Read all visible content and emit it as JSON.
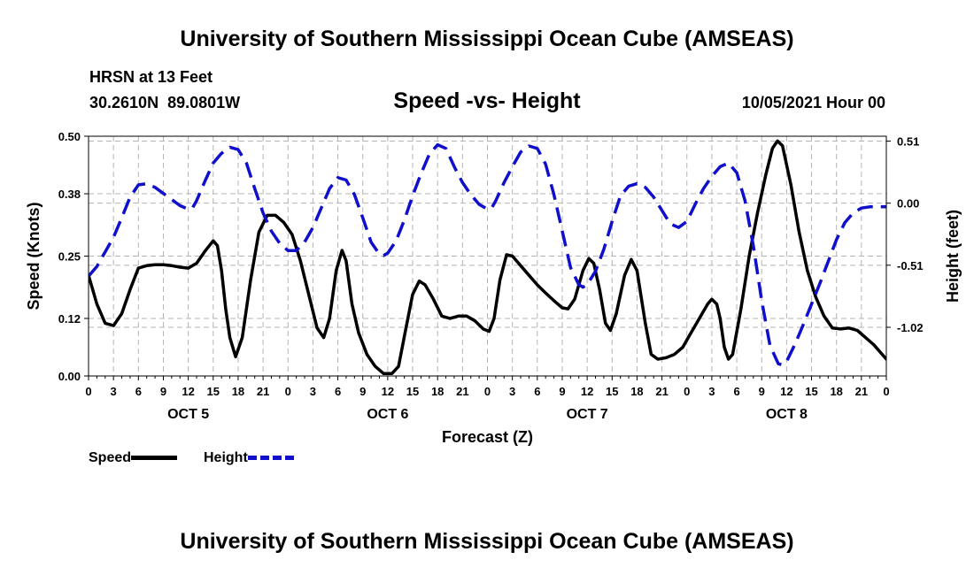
{
  "header": {
    "title": "University of Southern Mississippi Ocean Cube (AMSEAS)",
    "station": "HRSN at 13 Feet",
    "coords": "30.2610N  89.0801W",
    "subtitle": "Speed -vs- Height",
    "datestamp": "10/05/2021 Hour 00"
  },
  "footer": {
    "title": "University of Southern Mississippi Ocean Cube (AMSEAS)"
  },
  "legend": {
    "speed_label": "Speed",
    "height_label": "Height"
  },
  "colors": {
    "speed": "#000000",
    "height": "#1010cc",
    "grid": "#b4b4b4"
  },
  "chart_data": {
    "type": "line",
    "title": "Speed -vs- Height",
    "xlabel": "Forecast (Z)",
    "ylabel": "Speed (Knots)",
    "y2label": "Height (feet)",
    "xlim": [
      0,
      96
    ],
    "ylim": [
      0,
      0.5
    ],
    "y2lim": [
      -1.42,
      0.55
    ],
    "x_ticks": [
      0,
      3,
      6,
      9,
      12,
      15,
      18,
      21,
      24,
      27,
      30,
      33,
      36,
      39,
      42,
      45,
      48,
      51,
      54,
      57,
      60,
      63,
      66,
      69,
      72,
      75,
      78,
      81,
      84,
      87,
      90,
      93,
      96
    ],
    "x_tick_labels": [
      "0",
      "3",
      "6",
      "9",
      "12",
      "15",
      "18",
      "21",
      "0",
      "3",
      "6",
      "9",
      "12",
      "15",
      "18",
      "21",
      "0",
      "3",
      "6",
      "9",
      "12",
      "15",
      "18",
      "21",
      "0",
      "3",
      "6",
      "9",
      "12",
      "15",
      "18",
      "21",
      "0"
    ],
    "day_labels": [
      {
        "x": 12,
        "label": "OCT 5"
      },
      {
        "x": 36,
        "label": "OCT 6"
      },
      {
        "x": 60,
        "label": "OCT 7"
      },
      {
        "x": 84,
        "label": "OCT 8"
      }
    ],
    "y_ticks": [
      0.0,
      0.12,
      0.25,
      0.38,
      0.5
    ],
    "y_tick_labels": [
      "0.00",
      "0.12",
      "0.25",
      "0.38",
      "0.50"
    ],
    "y2_ticks": [
      0.51,
      0.0,
      -0.51,
      -1.02
    ],
    "y2_tick_labels": [
      "0.51",
      "0.00",
      "-0.51",
      "-1.02"
    ],
    "series": [
      {
        "name": "Speed",
        "axis": "left",
        "style": "solid",
        "points": [
          [
            0,
            0.21
          ],
          [
            1,
            0.15
          ],
          [
            2,
            0.11
          ],
          [
            3,
            0.105
          ],
          [
            4,
            0.13
          ],
          [
            5,
            0.18
          ],
          [
            6,
            0.225
          ],
          [
            7,
            0.23
          ],
          [
            8,
            0.232
          ],
          [
            9,
            0.232
          ],
          [
            10,
            0.23
          ],
          [
            11,
            0.227
          ],
          [
            12,
            0.225
          ],
          [
            13,
            0.235
          ],
          [
            14,
            0.26
          ],
          [
            15,
            0.282
          ],
          [
            15.5,
            0.272
          ],
          [
            16,
            0.22
          ],
          [
            16.5,
            0.14
          ],
          [
            17,
            0.08
          ],
          [
            17.7,
            0.04
          ],
          [
            18.5,
            0.08
          ],
          [
            19.5,
            0.2
          ],
          [
            20.5,
            0.3
          ],
          [
            21.5,
            0.335
          ],
          [
            22.5,
            0.335
          ],
          [
            23.5,
            0.32
          ],
          [
            24.5,
            0.295
          ],
          [
            25.5,
            0.24
          ],
          [
            26.5,
            0.17
          ],
          [
            27.5,
            0.1
          ],
          [
            28.3,
            0.08
          ],
          [
            29,
            0.12
          ],
          [
            29.8,
            0.22
          ],
          [
            30.5,
            0.262
          ],
          [
            31,
            0.24
          ],
          [
            31.7,
            0.15
          ],
          [
            32.5,
            0.09
          ],
          [
            33.5,
            0.045
          ],
          [
            34.5,
            0.02
          ],
          [
            35.5,
            0.005
          ],
          [
            36.5,
            0.005
          ],
          [
            37.3,
            0.02
          ],
          [
            38.2,
            0.1
          ],
          [
            39,
            0.17
          ],
          [
            39.8,
            0.198
          ],
          [
            40.5,
            0.19
          ],
          [
            41.5,
            0.16
          ],
          [
            42.5,
            0.125
          ],
          [
            43.5,
            0.12
          ],
          [
            44.5,
            0.125
          ],
          [
            45.5,
            0.125
          ],
          [
            46.5,
            0.115
          ],
          [
            47.5,
            0.098
          ],
          [
            48.2,
            0.093
          ],
          [
            48.8,
            0.12
          ],
          [
            49.5,
            0.2
          ],
          [
            50.3,
            0.253
          ],
          [
            51,
            0.25
          ],
          [
            52,
            0.23
          ],
          [
            53,
            0.21
          ],
          [
            54,
            0.19
          ],
          [
            55,
            0.173
          ],
          [
            56,
            0.157
          ],
          [
            57,
            0.142
          ],
          [
            57.7,
            0.14
          ],
          [
            58.5,
            0.16
          ],
          [
            59.5,
            0.22
          ],
          [
            60.2,
            0.245
          ],
          [
            60.8,
            0.235
          ],
          [
            61.5,
            0.18
          ],
          [
            62.2,
            0.11
          ],
          [
            62.8,
            0.095
          ],
          [
            63.5,
            0.13
          ],
          [
            64.5,
            0.21
          ],
          [
            65.3,
            0.243
          ],
          [
            66,
            0.22
          ],
          [
            67,
            0.11
          ],
          [
            67.7,
            0.045
          ],
          [
            68.5,
            0.035
          ],
          [
            69.5,
            0.038
          ],
          [
            70.5,
            0.045
          ],
          [
            71.5,
            0.06
          ],
          [
            72.5,
            0.09
          ],
          [
            73.5,
            0.12
          ],
          [
            74.5,
            0.15
          ],
          [
            75,
            0.16
          ],
          [
            75.6,
            0.15
          ],
          [
            76,
            0.12
          ],
          [
            76.5,
            0.06
          ],
          [
            77,
            0.035
          ],
          [
            77.5,
            0.045
          ],
          [
            78.5,
            0.14
          ],
          [
            79.5,
            0.25
          ],
          [
            80.5,
            0.34
          ],
          [
            81.5,
            0.42
          ],
          [
            82.3,
            0.475
          ],
          [
            82.9,
            0.49
          ],
          [
            83.5,
            0.48
          ],
          [
            84.5,
            0.4
          ],
          [
            85.5,
            0.3
          ],
          [
            86.5,
            0.22
          ],
          [
            87.5,
            0.165
          ],
          [
            88.5,
            0.125
          ],
          [
            89.5,
            0.1
          ],
          [
            90.5,
            0.098
          ],
          [
            91.5,
            0.1
          ],
          [
            92.5,
            0.095
          ],
          [
            93.5,
            0.08
          ],
          [
            94.5,
            0.065
          ],
          [
            95.5,
            0.045
          ],
          [
            96,
            0.035
          ]
        ]
      },
      {
        "name": "Height",
        "axis": "right",
        "style": "dashed",
        "points": [
          [
            0,
            -0.6
          ],
          [
            1,
            -0.52
          ],
          [
            2,
            -0.4
          ],
          [
            3,
            -0.28
          ],
          [
            4,
            -0.12
          ],
          [
            5,
            0.05
          ],
          [
            6,
            0.15
          ],
          [
            7,
            0.16
          ],
          [
            8,
            0.13
          ],
          [
            9,
            0.08
          ],
          [
            10,
            0.03
          ],
          [
            11,
            -0.02
          ],
          [
            12,
            -0.05
          ],
          [
            12.5,
            -0.04
          ],
          [
            13,
            0.02
          ],
          [
            14,
            0.18
          ],
          [
            15,
            0.33
          ],
          [
            16,
            0.41
          ],
          [
            17,
            0.46
          ],
          [
            18,
            0.44
          ],
          [
            19,
            0.33
          ],
          [
            20,
            0.12
          ],
          [
            21,
            -0.08
          ],
          [
            22,
            -0.23
          ],
          [
            23,
            -0.33
          ],
          [
            24,
            -0.39
          ],
          [
            25,
            -0.39
          ],
          [
            26,
            -0.32
          ],
          [
            27,
            -0.2
          ],
          [
            28,
            -0.04
          ],
          [
            29,
            0.12
          ],
          [
            30,
            0.21
          ],
          [
            31,
            0.19
          ],
          [
            32,
            0.07
          ],
          [
            33,
            -0.12
          ],
          [
            34,
            -0.32
          ],
          [
            35,
            -0.42
          ],
          [
            35.5,
            -0.43
          ],
          [
            36,
            -0.41
          ],
          [
            37,
            -0.31
          ],
          [
            38,
            -0.14
          ],
          [
            39,
            0.06
          ],
          [
            40,
            0.24
          ],
          [
            41,
            0.4
          ],
          [
            42,
            0.48
          ],
          [
            43,
            0.45
          ],
          [
            44,
            0.3
          ],
          [
            45,
            0.17
          ],
          [
            46,
            0.07
          ],
          [
            47,
            -0.01
          ],
          [
            48,
            -0.05
          ],
          [
            48.5,
            -0.04
          ],
          [
            49,
            0.02
          ],
          [
            50,
            0.17
          ],
          [
            51,
            0.3
          ],
          [
            52,
            0.42
          ],
          [
            53,
            0.47
          ],
          [
            54,
            0.45
          ],
          [
            55,
            0.32
          ],
          [
            56,
            0.07
          ],
          [
            57,
            -0.23
          ],
          [
            58,
            -0.53
          ],
          [
            59,
            -0.67
          ],
          [
            59.5,
            -0.69
          ],
          [
            60,
            -0.67
          ],
          [
            61,
            -0.56
          ],
          [
            62,
            -0.38
          ],
          [
            63,
            -0.15
          ],
          [
            64,
            0.06
          ],
          [
            65,
            0.14
          ],
          [
            66,
            0.16
          ],
          [
            67,
            0.13
          ],
          [
            68,
            0.05
          ],
          [
            69,
            -0.06
          ],
          [
            70,
            -0.17
          ],
          [
            71,
            -0.2
          ],
          [
            72,
            -0.15
          ],
          [
            73,
            -0.01
          ],
          [
            74,
            0.12
          ],
          [
            75,
            0.22
          ],
          [
            76,
            0.3
          ],
          [
            77,
            0.33
          ],
          [
            78,
            0.25
          ],
          [
            79,
            0.02
          ],
          [
            80,
            -0.35
          ],
          [
            81,
            -0.8
          ],
          [
            82,
            -1.17
          ],
          [
            83,
            -1.32
          ],
          [
            83.5,
            -1.33
          ],
          [
            84,
            -1.3
          ],
          [
            85,
            -1.16
          ],
          [
            86,
            -1.0
          ],
          [
            87,
            -0.83
          ],
          [
            88,
            -0.66
          ],
          [
            89,
            -0.48
          ],
          [
            90,
            -0.3
          ],
          [
            91,
            -0.16
          ],
          [
            92,
            -0.08
          ],
          [
            93,
            -0.04
          ],
          [
            94,
            -0.03
          ],
          [
            95,
            -0.03
          ],
          [
            96,
            -0.03
          ]
        ]
      }
    ]
  }
}
